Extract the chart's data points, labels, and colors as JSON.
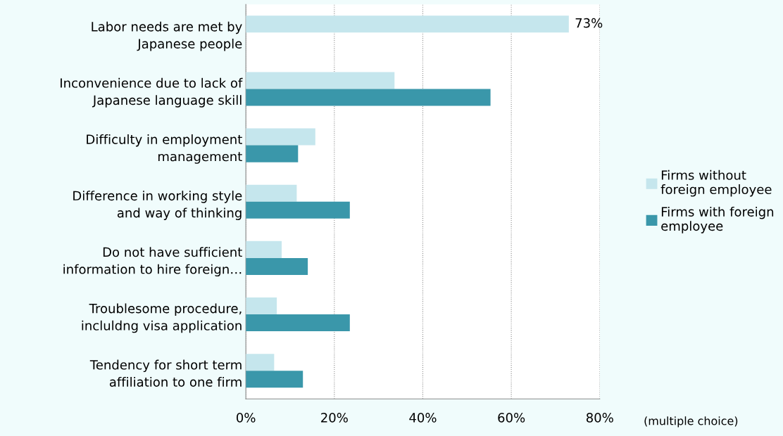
{
  "chart_data": {
    "type": "bar",
    "orientation": "horizontal",
    "categories": [
      "Labor needs are met by\nJapanese people",
      "Inconvenience due to lack of\nJapanese language skill",
      "Difficulty in employment\nmanagement",
      "Difference in working style\nand way of thinking",
      "Do not have sufficient\ninformation to hire foreign…",
      "Troublesome procedure,\nincluldng visa application",
      "Tendency for short term\naffiliation to one firm"
    ],
    "series": [
      {
        "name": "Firms without\nforeign employee",
        "color": "#c5e6ed",
        "values": [
          73,
          33.6,
          15.7,
          11.5,
          8.1,
          7.0,
          6.4
        ],
        "value_labels": [
          "73%",
          null,
          null,
          null,
          null,
          null,
          null
        ]
      },
      {
        "name": "Firms with foreign\nemployee",
        "color": "#3a97aa",
        "values": [
          null,
          55.3,
          11.8,
          23.5,
          14.0,
          23.5,
          12.9
        ]
      }
    ],
    "xlim": [
      0,
      80
    ],
    "xticks": [
      {
        "value": 0,
        "label": "0%"
      },
      {
        "value": 20,
        "label": "20%"
      },
      {
        "value": 40,
        "label": "40%"
      },
      {
        "value": 60,
        "label": "60%"
      },
      {
        "value": 80,
        "label": "80%"
      }
    ],
    "grid": "x",
    "legend": "right",
    "annotations": [
      "(multiple choice)"
    ]
  }
}
